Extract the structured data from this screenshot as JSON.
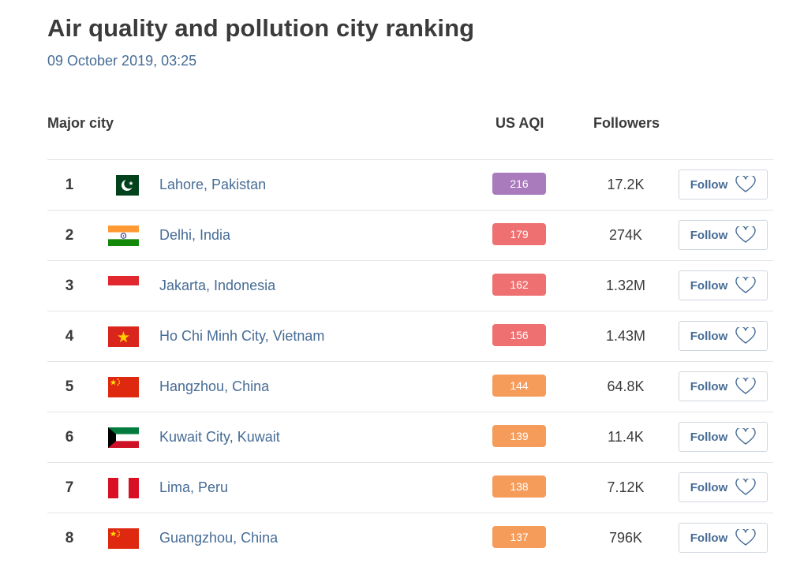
{
  "header": {
    "title": "Air quality and pollution city ranking",
    "timestamp": "09 October 2019, 03:25"
  },
  "columns": {
    "city": "Major city",
    "aqi": "US AQI",
    "followers": "Followers"
  },
  "colors": {
    "aqi_very_unhealthy": "#a97abc",
    "aqi_unhealthy": "#ef7070",
    "aqi_sensitive": "#f59c5b",
    "link": "#466c96"
  },
  "rows": [
    {
      "rank": "1",
      "city": "Lahore, Pakistan",
      "flag_icon": "pakistan-flag-icon",
      "aqi": "216",
      "aqi_color": "#a97abc",
      "followers": "17.2K",
      "follow_label": "Follow"
    },
    {
      "rank": "2",
      "city": "Delhi, India",
      "flag_icon": "india-flag-icon",
      "aqi": "179",
      "aqi_color": "#ef7070",
      "followers": "274K",
      "follow_label": "Follow"
    },
    {
      "rank": "3",
      "city": "Jakarta, Indonesia",
      "flag_icon": "indonesia-flag-icon",
      "aqi": "162",
      "aqi_color": "#ef7070",
      "followers": "1.32M",
      "follow_label": "Follow"
    },
    {
      "rank": "4",
      "city": "Ho Chi Minh City, Vietnam",
      "flag_icon": "vietnam-flag-icon",
      "aqi": "156",
      "aqi_color": "#ef7070",
      "followers": "1.43M",
      "follow_label": "Follow"
    },
    {
      "rank": "5",
      "city": "Hangzhou, China",
      "flag_icon": "china-flag-icon",
      "aqi": "144",
      "aqi_color": "#f59c5b",
      "followers": "64.8K",
      "follow_label": "Follow"
    },
    {
      "rank": "6",
      "city": "Kuwait City, Kuwait",
      "flag_icon": "kuwait-flag-icon",
      "aqi": "139",
      "aqi_color": "#f59c5b",
      "followers": "11.4K",
      "follow_label": "Follow"
    },
    {
      "rank": "7",
      "city": "Lima, Peru",
      "flag_icon": "peru-flag-icon",
      "aqi": "138",
      "aqi_color": "#f59c5b",
      "followers": "7.12K",
      "follow_label": "Follow"
    },
    {
      "rank": "8",
      "city": "Guangzhou, China",
      "flag_icon": "china-flag-icon",
      "aqi": "137",
      "aqi_color": "#f59c5b",
      "followers": "796K",
      "follow_label": "Follow"
    }
  ]
}
